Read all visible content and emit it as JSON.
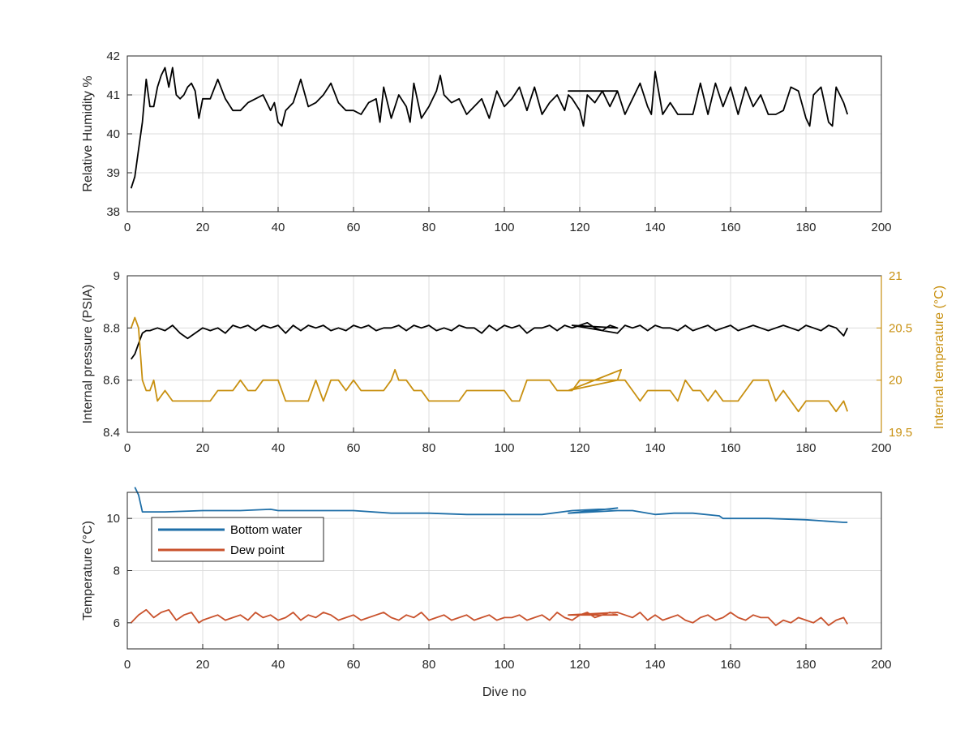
{
  "chart_data": [
    {
      "type": "line",
      "xlabel": "",
      "ylabel": "Relative Humidity %",
      "xlim": [
        0,
        200
      ],
      "ylim": [
        38,
        42
      ],
      "xticks": [
        "0",
        "20",
        "40",
        "60",
        "80",
        "100",
        "120",
        "140",
        "160",
        "180",
        "200"
      ],
      "yticks": [
        "38",
        "39",
        "40",
        "41",
        "42"
      ],
      "grid": true,
      "series": [
        {
          "color": "#000000",
          "x": [
            1,
            2,
            3,
            4,
            5,
            6,
            7,
            8,
            9,
            10,
            11,
            12,
            13,
            14,
            15,
            16,
            17,
            18,
            19,
            20,
            22,
            24,
            26,
            28,
            30,
            32,
            34,
            36,
            38,
            39,
            40,
            41,
            42,
            44,
            46,
            48,
            50,
            52,
            54,
            56,
            58,
            60,
            62,
            64,
            66,
            67,
            68,
            70,
            72,
            74,
            75,
            76,
            78,
            80,
            82,
            83,
            84,
            86,
            88,
            90,
            92,
            94,
            96,
            98,
            100,
            102,
            104,
            106,
            108,
            110,
            112,
            114,
            116,
            117,
            118,
            120,
            121,
            122,
            124,
            126,
            128,
            130,
            117,
            130,
            132,
            134,
            136,
            138,
            139,
            140,
            142,
            144,
            146,
            148,
            150,
            152,
            154,
            156,
            158,
            160,
            162,
            164,
            166,
            168,
            170,
            172,
            174,
            176,
            178,
            180,
            181,
            182,
            184,
            186,
            187,
            188,
            190,
            191
          ],
          "y": [
            38.6,
            38.9,
            39.6,
            40.3,
            41.4,
            40.7,
            40.7,
            41.2,
            41.5,
            41.7,
            41.2,
            41.7,
            41.0,
            40.9,
            41.0,
            41.2,
            41.3,
            41.1,
            40.4,
            40.9,
            40.9,
            41.4,
            40.9,
            40.6,
            40.6,
            40.8,
            40.9,
            41.0,
            40.6,
            40.8,
            40.3,
            40.2,
            40.6,
            40.8,
            41.4,
            40.7,
            40.8,
            41.0,
            41.3,
            40.8,
            40.6,
            40.6,
            40.5,
            40.8,
            40.9,
            40.3,
            41.2,
            40.4,
            41.0,
            40.7,
            40.3,
            41.3,
            40.4,
            40.7,
            41.1,
            41.5,
            41.0,
            40.8,
            40.9,
            40.5,
            40.7,
            40.9,
            40.4,
            41.1,
            40.7,
            40.9,
            41.2,
            40.6,
            41.2,
            40.5,
            40.8,
            41.0,
            40.6,
            41.0,
            40.9,
            40.6,
            40.2,
            41.0,
            40.8,
            41.1,
            40.7,
            41.1,
            41.1,
            41.1,
            40.5,
            40.9,
            41.3,
            40.7,
            40.5,
            41.6,
            40.5,
            40.8,
            40.5,
            40.5,
            40.5,
            41.3,
            40.5,
            41.3,
            40.7,
            41.2,
            40.5,
            41.2,
            40.7,
            41.0,
            40.5,
            40.5,
            40.6,
            41.2,
            41.1,
            40.4,
            40.2,
            41.0,
            41.2,
            40.3,
            40.2,
            41.2,
            40.8,
            40.5
          ]
        }
      ]
    },
    {
      "type": "line",
      "xlabel": "",
      "ylabel": "Internal pressure (PSIA)",
      "y2label": "Internal temperature (°C)",
      "xlim": [
        0,
        200
      ],
      "ylim": [
        8.4,
        9.0
      ],
      "y2lim": [
        19.5,
        21.0
      ],
      "xticks": [
        "0",
        "20",
        "40",
        "60",
        "80",
        "100",
        "120",
        "140",
        "160",
        "180",
        "200"
      ],
      "yticks": [
        "8.4",
        "8.6",
        "8.8",
        "9"
      ],
      "y2ticks": [
        "19.5",
        "20",
        "20.5",
        "21"
      ],
      "grid": true,
      "series": [
        {
          "axis": "left",
          "color": "#000000",
          "x": [
            1,
            2,
            3,
            4,
            5,
            6,
            8,
            10,
            12,
            14,
            16,
            18,
            20,
            22,
            24,
            26,
            28,
            30,
            32,
            34,
            36,
            38,
            40,
            42,
            44,
            46,
            48,
            50,
            52,
            54,
            56,
            58,
            60,
            62,
            64,
            66,
            68,
            70,
            72,
            74,
            76,
            78,
            80,
            82,
            84,
            86,
            88,
            90,
            92,
            94,
            96,
            98,
            100,
            102,
            104,
            106,
            108,
            110,
            112,
            114,
            116,
            118,
            120,
            122,
            124,
            126,
            128,
            130,
            118,
            130,
            132,
            134,
            136,
            138,
            140,
            142,
            144,
            146,
            148,
            150,
            152,
            154,
            156,
            158,
            160,
            162,
            164,
            166,
            168,
            170,
            172,
            174,
            176,
            178,
            180,
            182,
            184,
            186,
            188,
            190,
            191
          ],
          "y": [
            8.68,
            8.7,
            8.74,
            8.78,
            8.79,
            8.79,
            8.8,
            8.79,
            8.81,
            8.78,
            8.76,
            8.78,
            8.8,
            8.79,
            8.8,
            8.78,
            8.81,
            8.8,
            8.81,
            8.79,
            8.81,
            8.8,
            8.81,
            8.78,
            8.81,
            8.79,
            8.81,
            8.8,
            8.81,
            8.79,
            8.8,
            8.79,
            8.81,
            8.8,
            8.81,
            8.79,
            8.8,
            8.8,
            8.81,
            8.79,
            8.81,
            8.8,
            8.81,
            8.79,
            8.8,
            8.79,
            8.81,
            8.8,
            8.8,
            8.78,
            8.81,
            8.79,
            8.81,
            8.8,
            8.81,
            8.78,
            8.8,
            8.8,
            8.81,
            8.79,
            8.81,
            8.8,
            8.81,
            8.82,
            8.8,
            8.79,
            8.81,
            8.8,
            8.81,
            8.78,
            8.81,
            8.8,
            8.81,
            8.79,
            8.81,
            8.8,
            8.8,
            8.79,
            8.81,
            8.79,
            8.8,
            8.81,
            8.79,
            8.8,
            8.81,
            8.79,
            8.8,
            8.81,
            8.8,
            8.79,
            8.8,
            8.81,
            8.8,
            8.79,
            8.81,
            8.8,
            8.79,
            8.81,
            8.8,
            8.77,
            8.8
          ]
        },
        {
          "axis": "right",
          "color": "#c89010",
          "x": [
            1,
            2,
            3,
            4,
            5,
            6,
            7,
            8,
            10,
            12,
            14,
            16,
            18,
            20,
            22,
            24,
            26,
            28,
            30,
            32,
            34,
            36,
            38,
            40,
            42,
            44,
            46,
            48,
            50,
            52,
            54,
            56,
            58,
            60,
            62,
            64,
            66,
            68,
            70,
            71,
            72,
            74,
            76,
            78,
            80,
            82,
            84,
            86,
            88,
            90,
            92,
            94,
            96,
            98,
            100,
            102,
            104,
            106,
            108,
            110,
            112,
            114,
            116,
            118,
            120,
            122,
            124,
            126,
            128,
            130,
            131,
            117,
            130,
            132,
            134,
            136,
            138,
            140,
            142,
            144,
            146,
            148,
            150,
            152,
            154,
            156,
            158,
            160,
            162,
            164,
            166,
            168,
            170,
            172,
            174,
            176,
            178,
            180,
            182,
            184,
            186,
            188,
            190,
            191
          ],
          "y": [
            20.5,
            20.6,
            20.5,
            20.0,
            19.9,
            19.9,
            20.0,
            19.8,
            19.9,
            19.8,
            19.8,
            19.8,
            19.8,
            19.8,
            19.8,
            19.9,
            19.9,
            19.9,
            20.0,
            19.9,
            19.9,
            20.0,
            20.0,
            20.0,
            19.8,
            19.8,
            19.8,
            19.8,
            20.0,
            19.8,
            20.0,
            20.0,
            19.9,
            20.0,
            19.9,
            19.9,
            19.9,
            19.9,
            20.0,
            20.1,
            20.0,
            20.0,
            19.9,
            19.9,
            19.8,
            19.8,
            19.8,
            19.8,
            19.8,
            19.9,
            19.9,
            19.9,
            19.9,
            19.9,
            19.9,
            19.8,
            19.8,
            20.0,
            20.0,
            20.0,
            20.0,
            19.9,
            19.9,
            19.9,
            20.0,
            20.0,
            20.0,
            20.0,
            20.0,
            20.0,
            20.1,
            19.9,
            20.0,
            20.0,
            19.9,
            19.8,
            19.9,
            19.9,
            19.9,
            19.9,
            19.8,
            20.0,
            19.9,
            19.9,
            19.8,
            19.9,
            19.8,
            19.8,
            19.8,
            19.9,
            20.0,
            20.0,
            20.0,
            19.8,
            19.9,
            19.8,
            19.7,
            19.8,
            19.8,
            19.8,
            19.8,
            19.7,
            19.8,
            19.7
          ]
        }
      ]
    },
    {
      "type": "line",
      "xlabel": "Dive no",
      "ylabel": "Temperature (°C)",
      "xlim": [
        0,
        200
      ],
      "ylim": [
        5,
        11
      ],
      "xticks": [
        "0",
        "20",
        "40",
        "60",
        "80",
        "100",
        "120",
        "140",
        "160",
        "180",
        "200"
      ],
      "yticks": [
        "6",
        "8",
        "10"
      ],
      "grid": true,
      "legend_position": "top-left",
      "series": [
        {
          "name": "Bottom water",
          "color": "#1f6fa8",
          "x": [
            2,
            3,
            4,
            10,
            20,
            30,
            38,
            40,
            50,
            60,
            70,
            80,
            90,
            100,
            110,
            118,
            125,
            128,
            130,
            117,
            130,
            134,
            140,
            145,
            150,
            157,
            158,
            165,
            170,
            180,
            190,
            191
          ],
          "y": [
            11.2,
            10.9,
            10.25,
            10.25,
            10.3,
            10.3,
            10.35,
            10.3,
            10.3,
            10.3,
            10.2,
            10.2,
            10.15,
            10.15,
            10.15,
            10.3,
            10.35,
            10.35,
            10.4,
            10.2,
            10.3,
            10.3,
            10.15,
            10.2,
            10.2,
            10.1,
            10.0,
            10.0,
            10.0,
            9.95,
            9.85,
            9.85
          ]
        },
        {
          "name": "Dew point",
          "color": "#c9522c",
          "x": [
            1,
            3,
            5,
            7,
            9,
            11,
            13,
            15,
            17,
            19,
            20,
            22,
            24,
            26,
            28,
            30,
            32,
            34,
            36,
            38,
            40,
            42,
            44,
            46,
            48,
            50,
            52,
            54,
            56,
            58,
            60,
            62,
            64,
            66,
            68,
            70,
            72,
            74,
            76,
            78,
            80,
            82,
            84,
            86,
            88,
            90,
            92,
            94,
            96,
            98,
            100,
            102,
            104,
            106,
            108,
            110,
            112,
            114,
            116,
            118,
            120,
            122,
            124,
            126,
            128,
            130,
            117,
            130,
            132,
            134,
            136,
            138,
            140,
            142,
            144,
            146,
            148,
            150,
            152,
            154,
            156,
            158,
            160,
            162,
            164,
            166,
            168,
            170,
            172,
            174,
            176,
            178,
            180,
            182,
            184,
            186,
            188,
            190,
            191
          ],
          "y": [
            6.0,
            6.3,
            6.5,
            6.2,
            6.4,
            6.5,
            6.1,
            6.3,
            6.4,
            6.0,
            6.1,
            6.2,
            6.3,
            6.1,
            6.2,
            6.3,
            6.1,
            6.4,
            6.2,
            6.3,
            6.1,
            6.2,
            6.4,
            6.1,
            6.3,
            6.2,
            6.4,
            6.3,
            6.1,
            6.2,
            6.3,
            6.1,
            6.2,
            6.3,
            6.4,
            6.2,
            6.1,
            6.3,
            6.2,
            6.4,
            6.1,
            6.2,
            6.3,
            6.1,
            6.2,
            6.3,
            6.1,
            6.2,
            6.3,
            6.1,
            6.2,
            6.2,
            6.3,
            6.1,
            6.2,
            6.3,
            6.1,
            6.4,
            6.2,
            6.1,
            6.3,
            6.4,
            6.2,
            6.3,
            6.4,
            6.3,
            6.3,
            6.4,
            6.3,
            6.2,
            6.4,
            6.1,
            6.3,
            6.1,
            6.2,
            6.3,
            6.1,
            6.0,
            6.2,
            6.3,
            6.1,
            6.2,
            6.4,
            6.2,
            6.1,
            6.3,
            6.2,
            6.2,
            5.9,
            6.1,
            6.0,
            6.2,
            6.1,
            6.0,
            6.2,
            5.9,
            6.1,
            6.2,
            5.95
          ]
        }
      ]
    }
  ]
}
